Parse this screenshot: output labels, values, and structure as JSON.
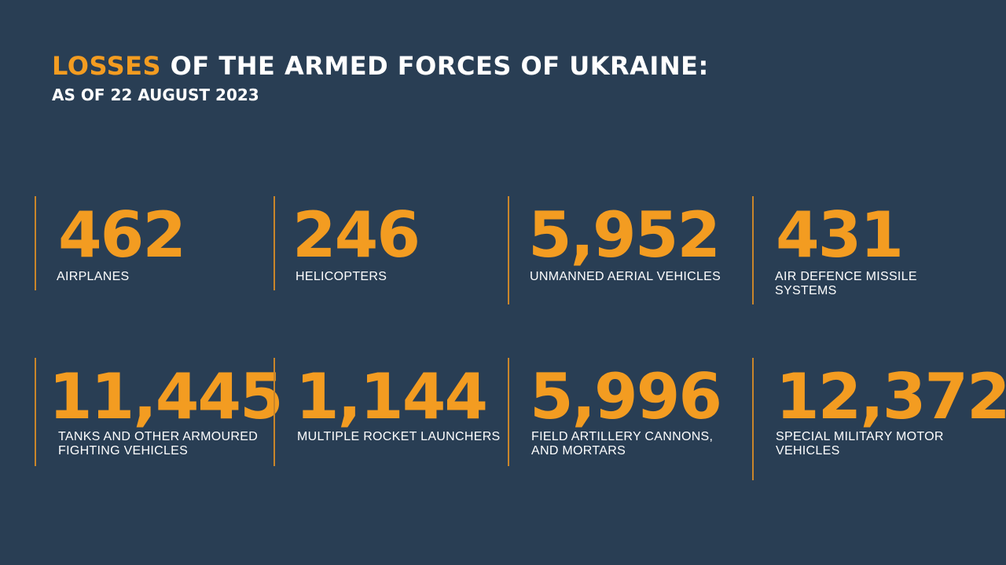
{
  "header": {
    "title_accent": "LOSSES",
    "title_rest": " OF THE ARMED FORCES OF UKRAINE:",
    "subtitle": "AS OF 22 AUGUST 2023"
  },
  "stats": [
    {
      "value": "462",
      "label": "AIRPLANES"
    },
    {
      "value": "246",
      "label": "HELICOPTERS"
    },
    {
      "value": "5,952",
      "label": "UNMANNED AERIAL VEHICLES"
    },
    {
      "value": "431",
      "label": "AIR DEFENCE MISSILE SYSTEMS"
    },
    {
      "value": "11,445",
      "label": "TANKS AND OTHER ARMOURED FIGHTING VEHICLES"
    },
    {
      "value": "1,144",
      "label": "MULTIPLE ROCKET LAUNCHERS"
    },
    {
      "value": "5,996",
      "label": "FIELD ARTILLERY CANNONS, AND MORTARS"
    },
    {
      "value": "12,372",
      "label": "SPECIAL MILITARY MOTOR VEHICLES"
    }
  ],
  "colors": {
    "background": "#293e54",
    "accent": "#f39c21",
    "divider": "#c9852a",
    "text": "#ffffff"
  }
}
